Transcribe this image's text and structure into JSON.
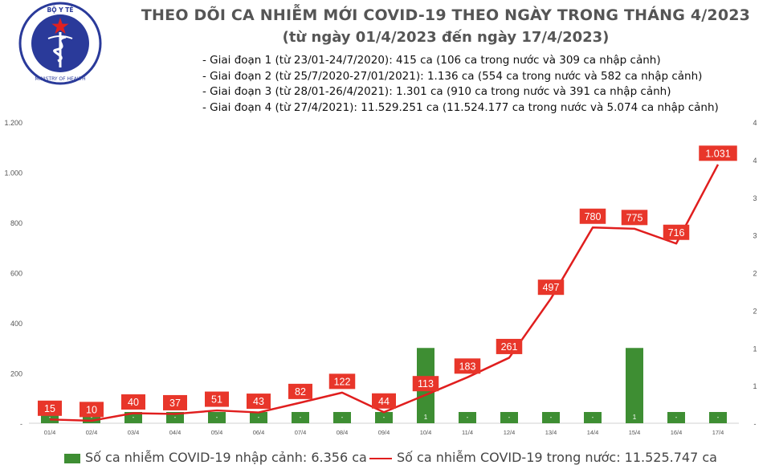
{
  "logo": {
    "icon": "ministry-of-health-emblem-icon",
    "top_text": "BỘ Y TẾ",
    "bottom_text": "MINISTRY OF HEALTH",
    "ring_color": "#2a3a9a",
    "star_color": "#e02020"
  },
  "header": {
    "title": "THEO DÕI CA NHIỄM MỚI COVID-19 THEO NGÀY TRONG THÁNG 4/2023",
    "subtitle": "(từ ngày 01/4/2023 đến ngày 17/4/2023)"
  },
  "phases": [
    "Giai đoạn 1 (từ 23/01-24/7/2020): 415 ca (106 ca trong nước và 309 ca nhập cảnh)",
    "Giai đoạn 2 (từ 25/7/2020-27/01/2021): 1.136 ca (554 ca trong nước và 582 ca nhập cảnh)",
    "Giai đoạn 3 (từ 28/01-26/4/2021): 1.301 ca (910 ca trong nước và 391 ca nhập cảnh)",
    "Giai đoạn 4 (từ 27/4/2021): 11.529.251 ca (11.524.177 ca trong nước và 5.074 ca nhập cảnh)"
  ],
  "legend": {
    "bar_label": "Số ca nhiễm COVID-19 nhập cảnh: 6.356 ca",
    "line_label": "Số ca nhiễm COVID-19 trong nước: 11.525.747 ca"
  },
  "chart_data": {
    "type": "bar+line",
    "categories": [
      "01/4",
      "02/4",
      "03/4",
      "04/4",
      "05/4",
      "06/4",
      "07/4",
      "08/4",
      "09/4",
      "10/4",
      "11/4",
      "12/4",
      "13/4",
      "14/4",
      "15/4",
      "16/4",
      "17/4"
    ],
    "series": [
      {
        "name": "Số ca nhiễm COVID-19 nhập cảnh: 6.356 ca",
        "type": "bar",
        "axis": "right",
        "color": "#3e8e33",
        "values": [
          0,
          0,
          0,
          0,
          0,
          0,
          0,
          0,
          0,
          1,
          0,
          0,
          0,
          0,
          1,
          0,
          0
        ],
        "data_labels": [
          "-",
          "-",
          "-",
          "-",
          "-",
          "-",
          "-",
          "-",
          "-",
          "1",
          "-",
          "-",
          "-",
          "-",
          "1",
          "-",
          "-"
        ]
      },
      {
        "name": "Số ca nhiễm COVID-19 trong nước: 11.525.747 ca",
        "type": "line",
        "axis": "left",
        "color": "#e01e1e",
        "values": [
          15,
          10,
          40,
          37,
          51,
          43,
          82,
          122,
          44,
          113,
          183,
          261,
          497,
          780,
          775,
          716,
          1031
        ],
        "data_labels": [
          "15",
          "10",
          "40",
          "37",
          "51",
          "43",
          "82",
          "122",
          "44",
          "113",
          "183",
          "261",
          "497",
          "780",
          "775",
          "716",
          "1.031"
        ]
      }
    ],
    "y_left": {
      "ylim": [
        0,
        1200
      ],
      "ticks": [
        0,
        200,
        400,
        600,
        800,
        1000,
        1200
      ],
      "tick_labels": [
        "-",
        "200",
        "400",
        "600",
        "800",
        "1.000",
        "1.200"
      ]
    },
    "y_right": {
      "ylim": [
        0,
        4
      ],
      "ticks": [
        0,
        0.5,
        1,
        1.5,
        2,
        2.5,
        3,
        3.5,
        4
      ],
      "tick_labels": [
        "-",
        "1",
        "1",
        "2",
        "2",
        "3",
        "3",
        "4",
        "4"
      ]
    },
    "grid": false,
    "legend_position": "bottom"
  }
}
